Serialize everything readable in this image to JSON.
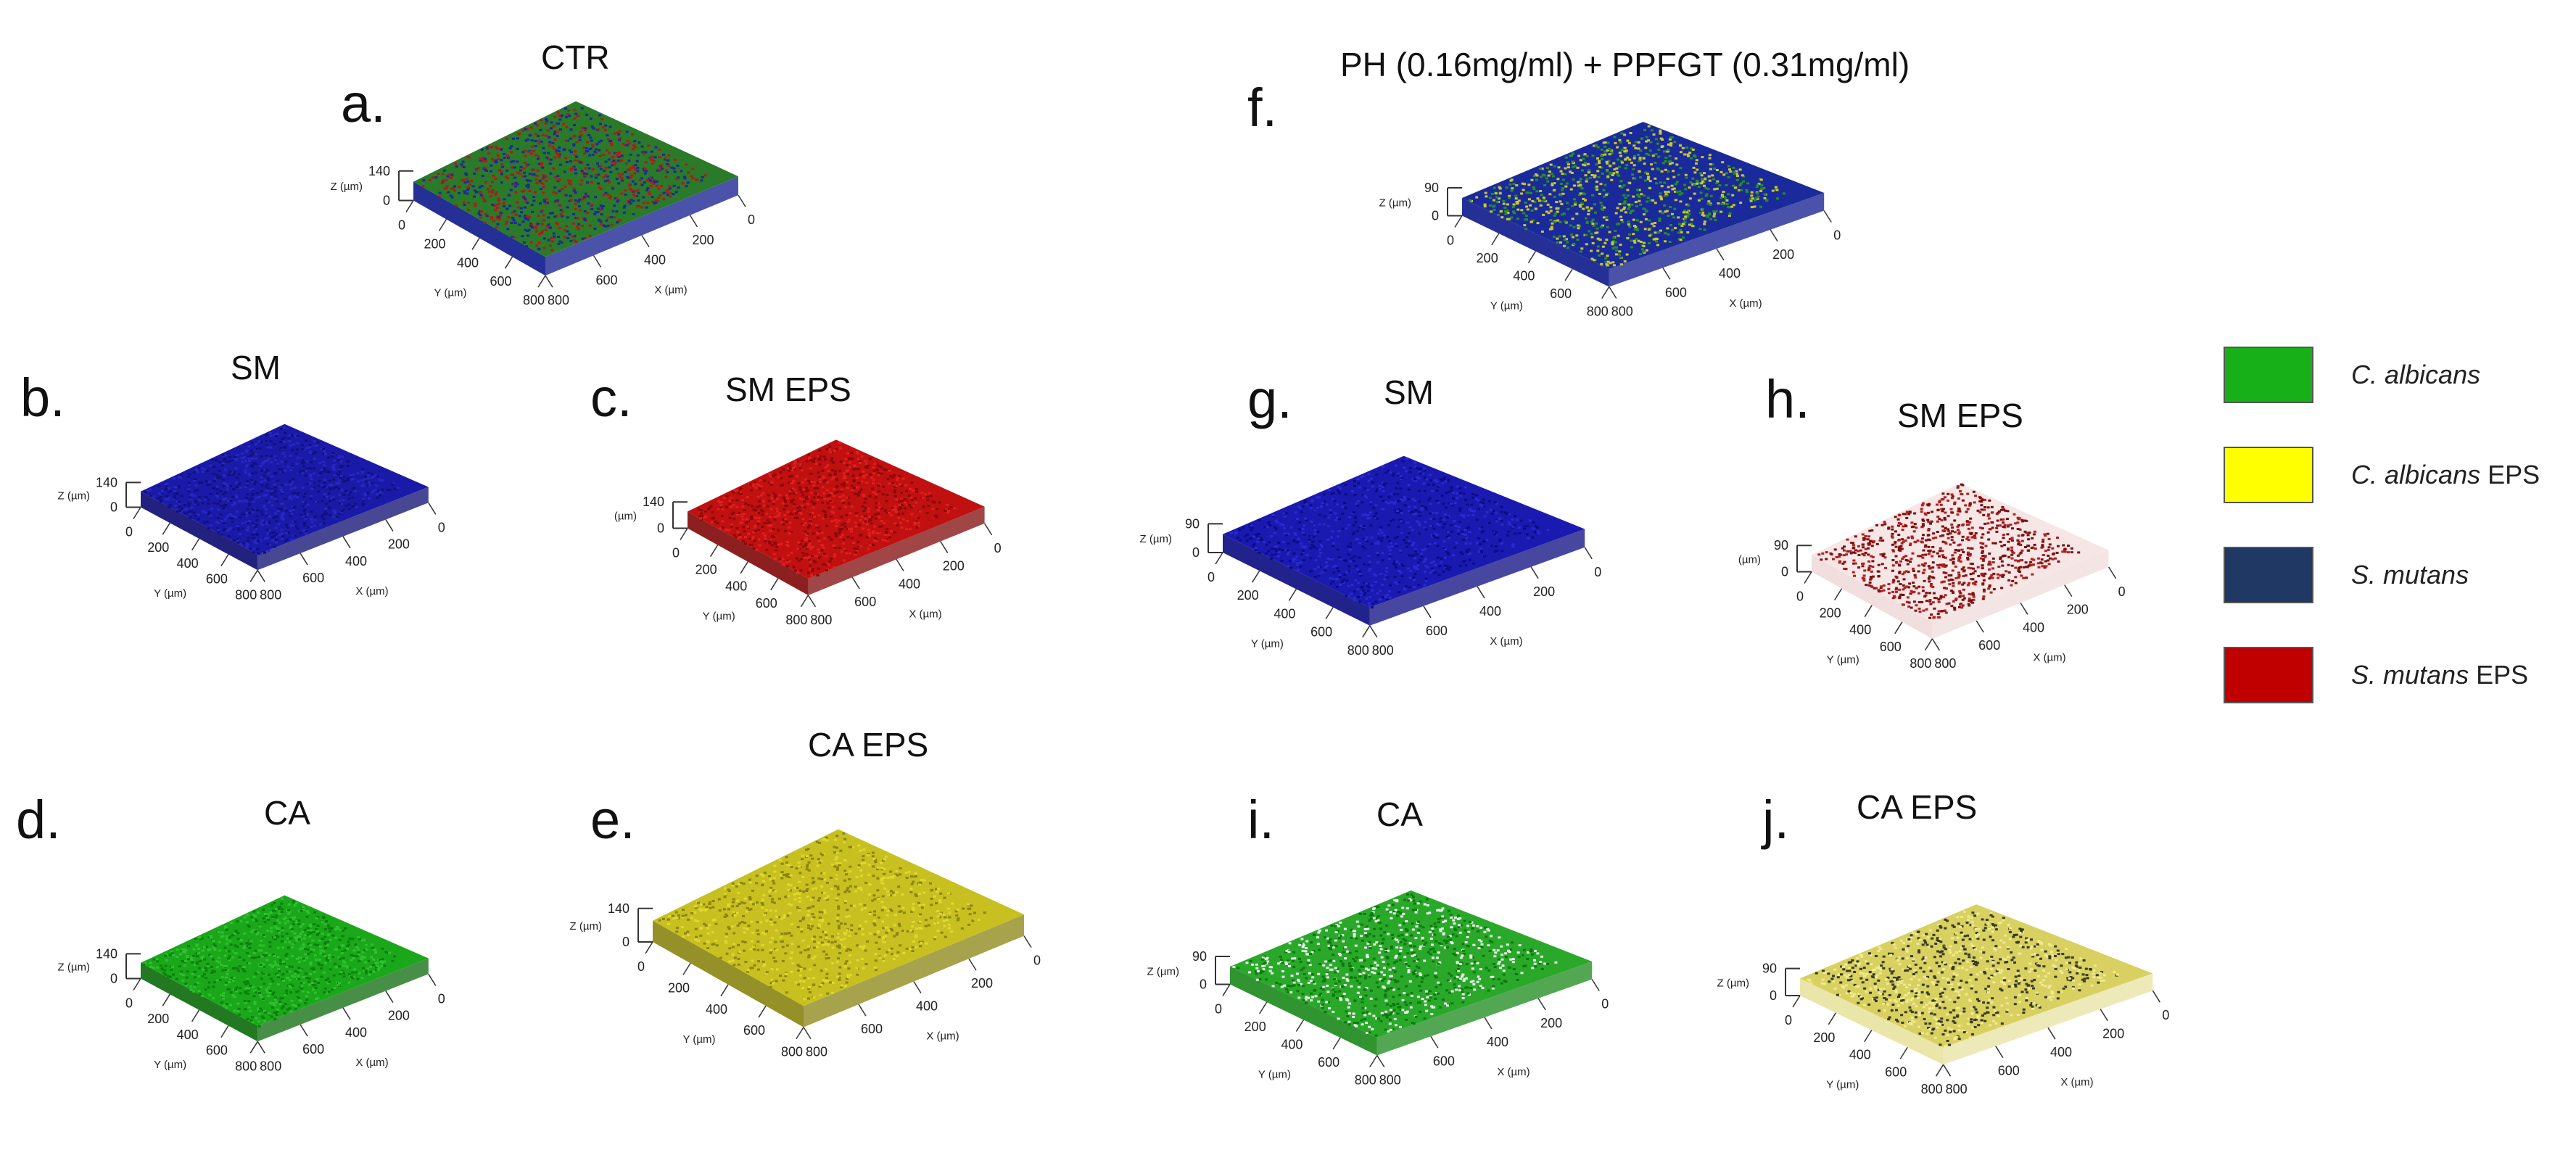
{
  "figure": {
    "left_title": "CTR",
    "right_title": "PH (0.16mg/ml) + PPFGT (0.31mg/ml)"
  },
  "panels": [
    {
      "id": "a",
      "label": "a.",
      "title": "CTR",
      "fill_a": "#2a7a2a",
      "fill_b": "#b01a1a",
      "fill_c": "#1a2a9a",
      "side": "#0d1a8c",
      "z_top": "140",
      "z_unit": "Z (µm)",
      "y_ticks": [
        "0",
        "200",
        "400",
        "600",
        "800"
      ],
      "x_ticks": [
        "800",
        "600",
        "400",
        "200",
        "0"
      ],
      "y_unit": "Y (µm)",
      "x_unit": "X (µm)"
    },
    {
      "id": "b",
      "label": "b.",
      "title": "SM",
      "fill_a": "#1a1aa8",
      "fill_b": "#101080",
      "fill_c": "#2828c0",
      "side": "#0a0a70",
      "z_top": "140",
      "z_unit": "Z (µm)",
      "y_ticks": [
        "0",
        "200",
        "400",
        "600",
        "800"
      ],
      "x_ticks": [
        "800",
        "600",
        "400",
        "200",
        "0"
      ],
      "y_unit": "Y (µm)",
      "x_unit": "X (µm)"
    },
    {
      "id": "c",
      "label": "c.",
      "title": "SM EPS",
      "fill_a": "#c01010",
      "fill_b": "#8a0808",
      "fill_c": "#e02020",
      "side": "#800808",
      "z_top": "140",
      "z_unit": "(µm)",
      "y_ticks": [
        "0",
        "200",
        "400",
        "600",
        "800"
      ],
      "x_ticks": [
        "800",
        "600",
        "400",
        "200",
        "0"
      ],
      "y_unit": "Y (µm)",
      "x_unit": "X (µm)"
    },
    {
      "id": "d",
      "label": "d.",
      "title": "CA",
      "fill_a": "#1aa81a",
      "fill_b": "#0c800c",
      "fill_c": "#30c030",
      "side": "#0a6a0a",
      "z_top": "140",
      "z_unit": "Z (µm)",
      "y_ticks": [
        "0",
        "200",
        "400",
        "600",
        "800"
      ],
      "x_ticks": [
        "800",
        "600",
        "400",
        "200",
        "0"
      ],
      "y_unit": "Y (µm)",
      "x_unit": "X (µm)"
    },
    {
      "id": "e",
      "label": "e.",
      "title": "CA EPS",
      "fill_a": "#c8c020",
      "fill_b": "#8a8410",
      "fill_c": "#e0d830",
      "side": "#8a8410",
      "z_top": "140",
      "z_unit": "Z (µm)",
      "y_ticks": [
        "0",
        "200",
        "400",
        "600",
        "800"
      ],
      "x_ticks": [
        "800",
        "600",
        "400",
        "200",
        "0"
      ],
      "y_unit": "Y (µm)",
      "x_unit": "X (µm)"
    },
    {
      "id": "f",
      "label": "f.",
      "title": "",
      "fill_a": "#1a2a9a",
      "fill_b": "#2a8a2a",
      "fill_c": "#c8c830",
      "side": "#0d1a8c",
      "z_top": "90",
      "z_unit": "Z (µm)",
      "y_ticks": [
        "0",
        "200",
        "400",
        "600",
        "800"
      ],
      "x_ticks": [
        "800",
        "600",
        "400",
        "200",
        "0"
      ],
      "y_unit": "Y (µm)",
      "x_unit": "X (µm)"
    },
    {
      "id": "g",
      "label": "g.",
      "title": "SM",
      "fill_a": "#1a1ab0",
      "fill_b": "#0c0c88",
      "fill_c": "#2a2ad0",
      "side": "#0a0a80",
      "z_top": "90",
      "z_unit": "Z (µm)",
      "y_ticks": [
        "0",
        "200",
        "400",
        "600",
        "800"
      ],
      "x_ticks": [
        "800",
        "600",
        "400",
        "200",
        "0"
      ],
      "y_unit": "Y (µm)",
      "x_unit": "X (µm)"
    },
    {
      "id": "h",
      "label": "h.",
      "title": "SM EPS",
      "fill_a": "#f6e6e6",
      "fill_b": "#b02020",
      "fill_c": "#7a1010",
      "side": "#f0dcdc",
      "z_top": "90",
      "z_unit": "(µm)",
      "y_ticks": [
        "0",
        "200",
        "400",
        "600",
        "800"
      ],
      "x_ticks": [
        "800",
        "600",
        "400",
        "200",
        "0"
      ],
      "y_unit": "Y (µm)",
      "x_unit": "X (µm)"
    },
    {
      "id": "i",
      "label": "i.",
      "title": "CA",
      "fill_a": "#2aa82a",
      "fill_b": "#e8f4e8",
      "fill_c": "#0c7a0c",
      "side": "#1a8a1a",
      "z_top": "90",
      "z_unit": "Z (µm)",
      "y_ticks": [
        "0",
        "200",
        "400",
        "600",
        "800"
      ],
      "x_ticks": [
        "800",
        "600",
        "400",
        "200",
        "0"
      ],
      "y_unit": "Y (µm)",
      "x_unit": "X (µm)"
    },
    {
      "id": "j",
      "label": "j.",
      "title": "CA EPS",
      "fill_a": "#d8d060",
      "fill_b": "#3a3a20",
      "fill_c": "#f0ea90",
      "side": "#e8e2a0",
      "z_top": "90",
      "z_unit": "Z (µm)",
      "y_ticks": [
        "0",
        "200",
        "400",
        "600",
        "800"
      ],
      "x_ticks": [
        "800",
        "600",
        "400",
        "200",
        "0"
      ],
      "y_unit": "Y (µm)",
      "x_unit": "X (µm)"
    }
  ],
  "legend": [
    {
      "species": "C. albicans",
      "suffix": "",
      "color": "#18b018"
    },
    {
      "species": "C. albicans",
      "suffix": " EPS",
      "color": "#ffff00"
    },
    {
      "species": "S. mutans",
      "suffix": "",
      "color": "#1f3864"
    },
    {
      "species": "S. mutans",
      "suffix": " EPS",
      "color": "#c00000"
    }
  ]
}
